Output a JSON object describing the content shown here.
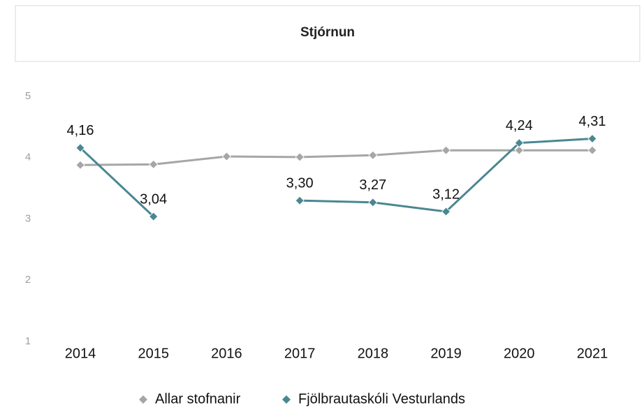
{
  "chart_data": {
    "type": "line",
    "title": "Stjórnun",
    "categories": [
      "2014",
      "2015",
      "2016",
      "2017",
      "2018",
      "2019",
      "2020",
      "2021"
    ],
    "series": [
      {
        "name": "Allar stofnanir",
        "color": "#a6a6a6",
        "values": [
          3.88,
          3.89,
          4.02,
          4.01,
          4.04,
          4.12,
          4.12,
          4.12
        ]
      },
      {
        "name": "Fjölbrautaskóli Vesturlands",
        "color": "#4a8792",
        "values": [
          4.16,
          3.04,
          null,
          3.3,
          3.27,
          3.12,
          4.24,
          4.31
        ],
        "value_labels": [
          "4,16",
          "3,04",
          null,
          "3,30",
          "3,27",
          "3,12",
          "4,24",
          "4,31"
        ]
      }
    ],
    "ylim": [
      1,
      5
    ],
    "yticks": [
      1,
      2,
      3,
      4,
      5
    ],
    "grid": false,
    "legend": "bottom"
  }
}
